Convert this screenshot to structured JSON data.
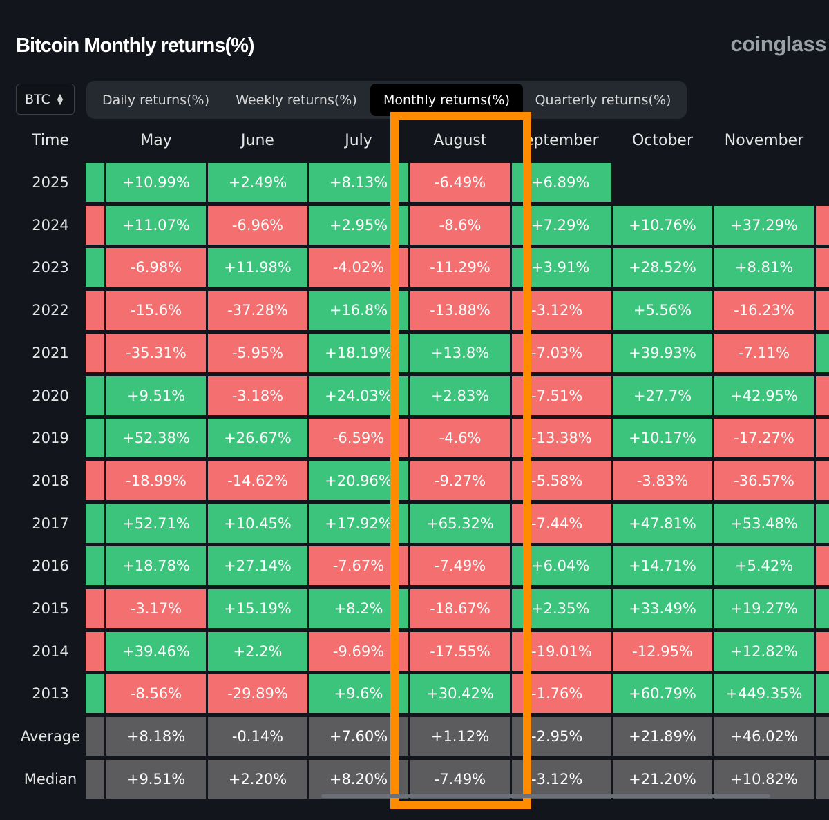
{
  "header": {
    "title": "Bitcoin Monthly returns(%)",
    "brand": "coinglass"
  },
  "coin_select": {
    "value": "BTC"
  },
  "tabs": [
    {
      "label": "Daily returns(%)",
      "active": false
    },
    {
      "label": "Weekly returns(%)",
      "active": false
    },
    {
      "label": "Monthly returns(%)",
      "active": true
    },
    {
      "label": "Quarterly returns(%)",
      "active": false
    }
  ],
  "table": {
    "time_header": "Time",
    "columns": [
      "May",
      "June",
      "July",
      "August",
      "eptember",
      "October",
      "November"
    ],
    "rows": [
      {
        "label": "2025",
        "left_edge": "pos",
        "right_edge": null,
        "values": [
          "+10.99%",
          "+2.49%",
          "+8.13%",
          "-6.49%",
          "+6.89%",
          "",
          ""
        ]
      },
      {
        "label": "2024",
        "left_edge": "neg",
        "right_edge": "neg",
        "values": [
          "+11.07%",
          "-6.96%",
          "+2.95%",
          "-8.6%",
          "+7.29%",
          "+10.76%",
          "+37.29%"
        ]
      },
      {
        "label": "2023",
        "left_edge": "pos",
        "right_edge": "neg",
        "values": [
          "-6.98%",
          "+11.98%",
          "-4.02%",
          "-11.29%",
          "+3.91%",
          "+28.52%",
          "+8.81%"
        ]
      },
      {
        "label": "2022",
        "left_edge": "neg",
        "right_edge": "neg",
        "values": [
          "-15.6%",
          "-37.28%",
          "+16.8%",
          "-13.88%",
          "-3.12%",
          "+5.56%",
          "-16.23%"
        ]
      },
      {
        "label": "2021",
        "left_edge": "neg",
        "right_edge": "pos",
        "values": [
          "-35.31%",
          "-5.95%",
          "+18.19%",
          "+13.8%",
          "-7.03%",
          "+39.93%",
          "-7.11%"
        ]
      },
      {
        "label": "2020",
        "left_edge": "pos",
        "right_edge": "neg",
        "values": [
          "+9.51%",
          "-3.18%",
          "+24.03%",
          "+2.83%",
          "-7.51%",
          "+27.7%",
          "+42.95%"
        ]
      },
      {
        "label": "2019",
        "left_edge": "pos",
        "right_edge": "neg",
        "values": [
          "+52.38%",
          "+26.67%",
          "-6.59%",
          "-4.6%",
          "-13.38%",
          "+10.17%",
          "-17.27%"
        ]
      },
      {
        "label": "2018",
        "left_edge": "neg",
        "right_edge": "neg",
        "values": [
          "-18.99%",
          "-14.62%",
          "+20.96%",
          "-9.27%",
          "-5.58%",
          "-3.83%",
          "-36.57%"
        ]
      },
      {
        "label": "2017",
        "left_edge": "pos",
        "right_edge": "pos",
        "values": [
          "+52.71%",
          "+10.45%",
          "+17.92%",
          "+65.32%",
          "-7.44%",
          "+47.81%",
          "+53.48%"
        ]
      },
      {
        "label": "2016",
        "left_edge": "pos",
        "right_edge": "neg",
        "values": [
          "+18.78%",
          "+27.14%",
          "-7.67%",
          "-7.49%",
          "+6.04%",
          "+14.71%",
          "+5.42%"
        ]
      },
      {
        "label": "2015",
        "left_edge": "neg",
        "right_edge": "pos",
        "values": [
          "-3.17%",
          "+15.19%",
          "+8.2%",
          "-18.67%",
          "+2.35%",
          "+33.49%",
          "+19.27%"
        ]
      },
      {
        "label": "2014",
        "left_edge": "neg",
        "right_edge": "neg",
        "values": [
          "+39.46%",
          "+2.2%",
          "-9.69%",
          "-17.55%",
          "-19.01%",
          "-12.95%",
          "+12.82%"
        ]
      },
      {
        "label": "2013",
        "left_edge": "pos",
        "right_edge": "pos",
        "values": [
          "-8.56%",
          "-29.89%",
          "+9.6%",
          "+30.42%",
          "-1.76%",
          "+60.79%",
          "+449.35%"
        ]
      }
    ],
    "summary": [
      {
        "label": "Average",
        "values": [
          "+8.18%",
          "-0.14%",
          "+7.60%",
          "+1.12%",
          "-2.95%",
          "+21.89%",
          "+46.02%"
        ]
      },
      {
        "label": "Median",
        "values": [
          "+9.51%",
          "+2.20%",
          "+8.20%",
          "-7.49%",
          "-3.12%",
          "+21.20%",
          "+10.82%"
        ]
      }
    ]
  },
  "colors": {
    "positive": "#3cc47c",
    "negative": "#f46f6f",
    "summary": "#5c5c5e",
    "highlight": "#ff8c00"
  },
  "icons": {
    "select": "chevron-up-down-icon"
  }
}
